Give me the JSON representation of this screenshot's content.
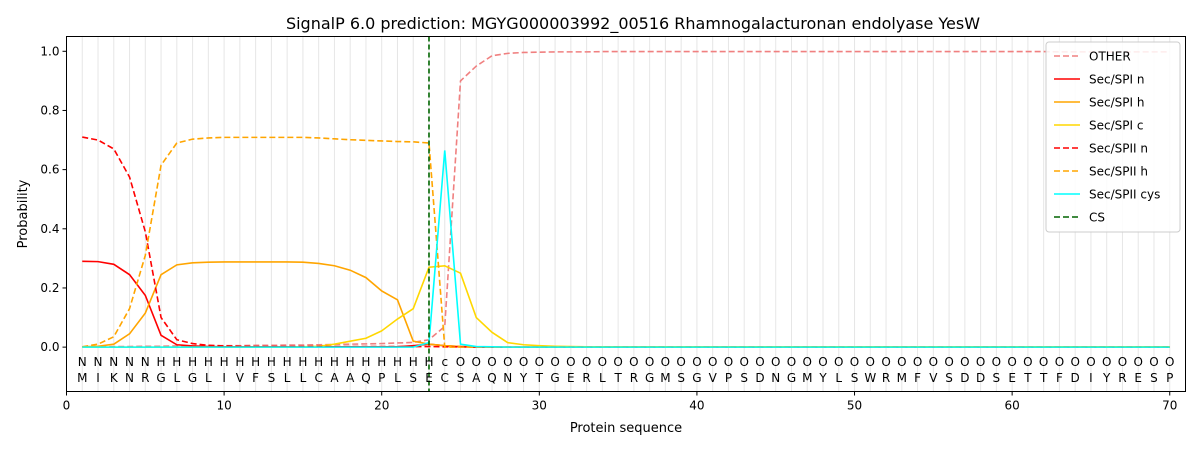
{
  "chart_data": {
    "type": "line",
    "title": "SignalP 6.0 prediction: MGYG000003992_00516 Rhamnogalacturonan endolyase YesW",
    "xlabel": "Protein sequence",
    "ylabel": "Probability",
    "xlim": [
      0,
      71
    ],
    "ylim": [
      -0.15,
      1.05
    ],
    "xticks": [
      0,
      10,
      20,
      30,
      40,
      50,
      60,
      70
    ],
    "yticks": [
      0.0,
      0.2,
      0.4,
      0.6,
      0.8,
      1.0
    ],
    "ytick_labels": [
      "0.0",
      "0.2",
      "0.4",
      "0.6",
      "0.8",
      "1.0"
    ],
    "grid": "vertical lines at each residue",
    "legend_position": "top-right",
    "cs_position": 23,
    "sequence": "MIKNRGLGLIVFSLLCAAQPLSECSAQNYTGERLTRGMSGVPSDNGMYLSWRMFVSDDSETTFDIYRESP",
    "region_labels": "NNNNNHHHHHHHHHHHHHHHHHHCOOOOOOOOOOOOOOOOOOOOOOOOOOOOOOOOOOOOOOOOOOOOOO",
    "region_colors": {
      "N": "#ff0000",
      "H": "#ffa500",
      "C": "#00ffff",
      "O": "#808080"
    },
    "series": [
      {
        "name": "OTHER",
        "color": "#f08080",
        "dash": true,
        "values": [
          0.001,
          0.001,
          0.002,
          0.002,
          0.003,
          0.003,
          0.004,
          0.004,
          0.005,
          0.005,
          0.005,
          0.006,
          0.006,
          0.007,
          0.007,
          0.008,
          0.009,
          0.01,
          0.011,
          0.012,
          0.014,
          0.016,
          0.025,
          0.07,
          0.9,
          0.95,
          0.985,
          0.993,
          0.996,
          0.997,
          0.998,
          0.998,
          0.998,
          0.999,
          0.999,
          0.999,
          0.999,
          0.999,
          0.999,
          0.999,
          0.999,
          0.999,
          0.999,
          0.999,
          0.999,
          0.999,
          0.999,
          0.999,
          0.999,
          0.999,
          0.999,
          0.999,
          0.999,
          0.999,
          0.999,
          0.999,
          0.999,
          0.999,
          0.999,
          0.999,
          0.999,
          0.999,
          0.998,
          0.998,
          0.998,
          0.998,
          0.998,
          0.998,
          0.998,
          0.998
        ]
      },
      {
        "name": "Sec/SPI n",
        "color": "#ff0000",
        "dash": false,
        "values": [
          0.29,
          0.289,
          0.28,
          0.245,
          0.175,
          0.04,
          0.008,
          0.004,
          0.002,
          0.001,
          0.001,
          0.001,
          0.001,
          0.001,
          0.001,
          0.001,
          0.001,
          0.001,
          0.001,
          0.001,
          0.001,
          0.005,
          0.01,
          0.005,
          0.002,
          0,
          0,
          0,
          0,
          0,
          0,
          0,
          0,
          0,
          0,
          0,
          0,
          0,
          0,
          0,
          0,
          0,
          0,
          0,
          0,
          0,
          0,
          0,
          0,
          0,
          0,
          0,
          0,
          0,
          0,
          0,
          0,
          0,
          0,
          0,
          0,
          0,
          0,
          0,
          0,
          0,
          0,
          0,
          0,
          0
        ]
      },
      {
        "name": "Sec/SPI h",
        "color": "#ffa500",
        "dash": false,
        "values": [
          0.001,
          0.003,
          0.01,
          0.045,
          0.115,
          0.245,
          0.278,
          0.285,
          0.287,
          0.288,
          0.288,
          0.288,
          0.288,
          0.288,
          0.287,
          0.283,
          0.275,
          0.26,
          0.235,
          0.19,
          0.16,
          0.02,
          0.01,
          0.005,
          0.002,
          0.001,
          0,
          0,
          0,
          0,
          0,
          0,
          0,
          0,
          0,
          0,
          0,
          0,
          0,
          0,
          0,
          0,
          0,
          0,
          0,
          0,
          0,
          0,
          0,
          0,
          0,
          0,
          0,
          0,
          0,
          0,
          0,
          0,
          0,
          0,
          0,
          0,
          0,
          0,
          0,
          0,
          0,
          0,
          0,
          0
        ]
      },
      {
        "name": "Sec/SPI c",
        "color": "#ffd700",
        "dash": false,
        "values": [
          0,
          0,
          0,
          0,
          0,
          0,
          0,
          0,
          0,
          0,
          0,
          0,
          0,
          0,
          0.001,
          0.003,
          0.01,
          0.02,
          0.03,
          0.055,
          0.095,
          0.13,
          0.27,
          0.275,
          0.25,
          0.1,
          0.05,
          0.015,
          0.008,
          0.005,
          0.003,
          0.002,
          0.001,
          0.001,
          0.001,
          0.001,
          0.001,
          0.001,
          0.001,
          0.001,
          0.001,
          0.001,
          0.001,
          0.001,
          0.001,
          0.001,
          0.001,
          0.001,
          0.001,
          0.001,
          0.001,
          0.001,
          0.001,
          0.001,
          0.001,
          0.001,
          0.001,
          0.001,
          0.001,
          0.001,
          0.001,
          0.001,
          0.001,
          0.001,
          0.001,
          0.001,
          0.001,
          0.001,
          0.001,
          0.001
        ]
      },
      {
        "name": "Sec/SPII n",
        "color": "#ff0000",
        "dash": true,
        "values": [
          0.71,
          0.7,
          0.67,
          0.575,
          0.39,
          0.1,
          0.025,
          0.012,
          0.006,
          0.004,
          0.003,
          0.002,
          0.002,
          0.002,
          0.002,
          0.002,
          0.002,
          0.002,
          0.002,
          0.002,
          0.002,
          0.002,
          0.002,
          0.001,
          0.001,
          0,
          0,
          0,
          0,
          0,
          0,
          0,
          0,
          0,
          0,
          0,
          0,
          0,
          0,
          0,
          0,
          0,
          0,
          0,
          0,
          0,
          0,
          0,
          0,
          0,
          0,
          0,
          0,
          0,
          0,
          0,
          0,
          0,
          0,
          0,
          0,
          0,
          0,
          0,
          0,
          0,
          0,
          0,
          0,
          0
        ]
      },
      {
        "name": "Sec/SPII h",
        "color": "#ffa500",
        "dash": true,
        "values": [
          0.001,
          0.01,
          0.035,
          0.13,
          0.31,
          0.615,
          0.69,
          0.703,
          0.707,
          0.709,
          0.709,
          0.709,
          0.709,
          0.709,
          0.709,
          0.707,
          0.704,
          0.701,
          0.699,
          0.697,
          0.695,
          0.694,
          0.69,
          0.0,
          0.0,
          0,
          0,
          0,
          0,
          0,
          0,
          0,
          0,
          0,
          0,
          0,
          0,
          0,
          0,
          0,
          0,
          0,
          0,
          0,
          0,
          0,
          0,
          0,
          0,
          0,
          0,
          0,
          0,
          0,
          0,
          0,
          0,
          0,
          0,
          0,
          0,
          0,
          0,
          0,
          0,
          0,
          0,
          0,
          0,
          0
        ]
      },
      {
        "name": "Sec/SPII cys",
        "color": "#00ffff",
        "dash": false,
        "values": [
          0,
          0,
          0,
          0,
          0,
          0,
          0,
          0,
          0,
          0,
          0,
          0,
          0,
          0,
          0,
          0,
          0,
          0,
          0,
          0,
          0,
          0,
          0.015,
          0.665,
          0.01,
          0.002,
          0.001,
          0,
          0,
          0,
          0,
          0,
          0,
          0,
          0,
          0,
          0,
          0,
          0,
          0,
          0,
          0,
          0,
          0,
          0,
          0,
          0,
          0,
          0,
          0,
          0,
          0,
          0,
          0,
          0,
          0,
          0,
          0,
          0,
          0,
          0,
          0,
          0,
          0,
          0,
          0,
          0,
          0,
          0,
          0
        ]
      },
      {
        "name": "CS",
        "color": "#006400",
        "dash": true,
        "values": []
      }
    ]
  }
}
